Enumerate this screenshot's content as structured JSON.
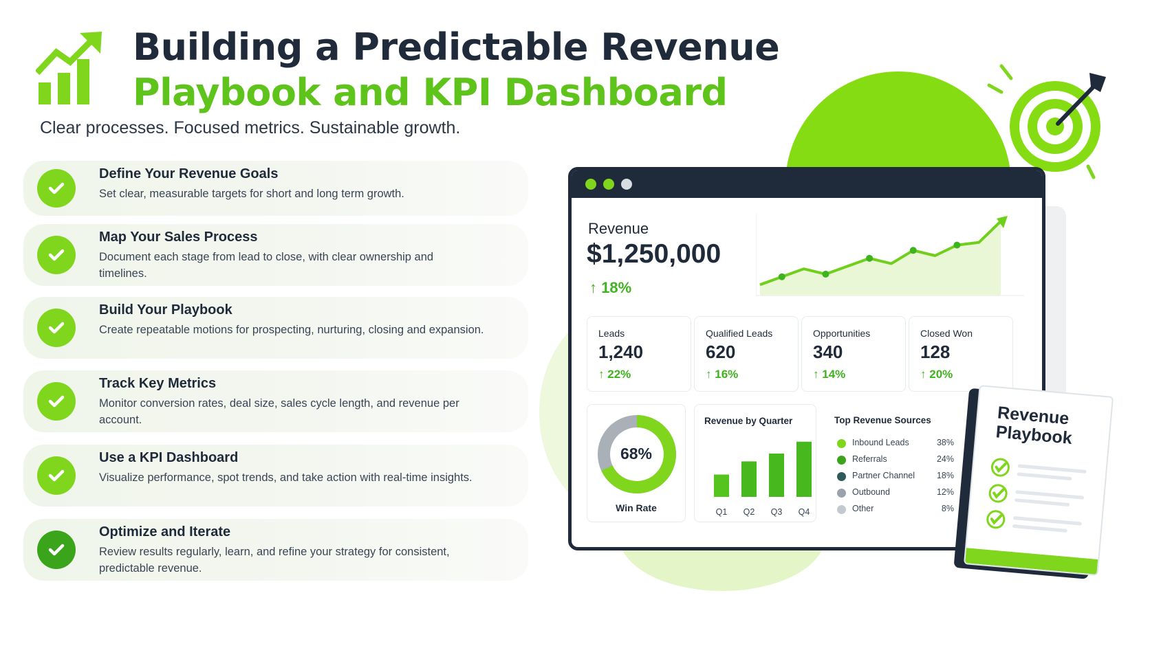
{
  "header": {
    "title_line1": "Building a Predictable Revenue",
    "title_line2": "Playbook and KPI Dashboard",
    "subtitle": "Clear processes. Focused metrics. Sustainable growth."
  },
  "steps": [
    {
      "title": "Define Your Revenue Goals",
      "desc": "Set clear, measurable targets for short and long term growth."
    },
    {
      "title": "Map Your Sales Process",
      "desc": "Document each stage from lead to close, with clear ownership and timelines."
    },
    {
      "title": "Build Your Playbook",
      "desc": "Create repeatable motions for prospecting, nurturing, closing and expansion."
    },
    {
      "title": "Track Key Metrics",
      "desc": "Monitor conversion rates, deal size, sales cycle length, and revenue per account."
    },
    {
      "title": "Use a KPI Dashboard",
      "desc": "Visualize performance, spot trends, and take action with real-time insights."
    },
    {
      "title": "Optimize and Iterate",
      "desc": "Review results regularly, learn, and refine your strategy for consistent, predictable revenue."
    }
  ],
  "dashboard": {
    "revenue_label": "Revenue",
    "revenue_value": "$1,250,000",
    "revenue_change": "18%",
    "revenue_trend": [
      2,
      5,
      8,
      6,
      9,
      12,
      10,
      15,
      13,
      17,
      18,
      26
    ],
    "kpis": [
      {
        "label": "Leads",
        "value": "1,240",
        "change": "22%"
      },
      {
        "label": "Qualified Leads",
        "value": "620",
        "change": "16%"
      },
      {
        "label": "Opportunities",
        "value": "340",
        "change": "14%"
      },
      {
        "label": "Closed Won",
        "value": "128",
        "change": "20%"
      }
    ],
    "win_rate": {
      "percent": "68%",
      "fraction": 0.68,
      "label": "Win Rate"
    },
    "quarter_chart": {
      "title": "Revenue by Quarter",
      "categories": [
        "Q1",
        "Q2",
        "Q3",
        "Q4"
      ],
      "values": [
        34,
        54,
        66,
        84
      ]
    },
    "sources": {
      "title": "Top Revenue Sources",
      "items": [
        {
          "name": "Inbound Leads",
          "pct": "38%",
          "color": "#7fd61c"
        },
        {
          "name": "Referrals",
          "pct": "24%",
          "color": "#3aa41a"
        },
        {
          "name": "Partner Channel",
          "pct": "18%",
          "color": "#2e5a5a"
        },
        {
          "name": "Outbound",
          "pct": "12%",
          "color": "#9aa2ab"
        },
        {
          "name": "Other",
          "pct": "8%",
          "color": "#c4c9cf"
        }
      ]
    }
  },
  "book": {
    "title_line1": "Revenue",
    "title_line2": "Playbook"
  },
  "colors": {
    "accent": "#7fd61c",
    "accent_dark": "#3aa41a",
    "navy": "#1f2a3a"
  }
}
